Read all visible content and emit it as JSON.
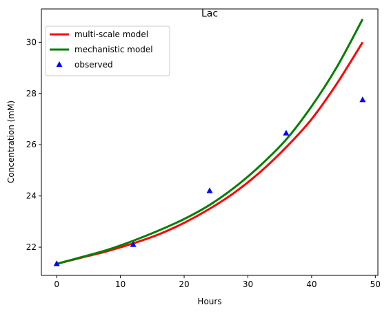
{
  "chart_data": {
    "type": "line",
    "title": "Lac",
    "xlabel": "Hours",
    "ylabel": "Concentration (mM)",
    "xlim": [
      -2.4,
      50.4
    ],
    "ylim": [
      20.9,
      31.3
    ],
    "x_ticks": [
      0,
      10,
      20,
      30,
      40,
      50
    ],
    "y_ticks": [
      22,
      24,
      26,
      28,
      30
    ],
    "grid": false,
    "legend_position": "upper-left",
    "series": [
      {
        "name": "multi-scale model",
        "kind": "line",
        "color": "#ff0000",
        "x": [
          0,
          4,
          8,
          12,
          16,
          20,
          24,
          28,
          32,
          36,
          40,
          44,
          48
        ],
        "y": [
          21.35,
          21.6,
          21.85,
          22.15,
          22.5,
          22.95,
          23.5,
          24.15,
          24.95,
          25.9,
          27.0,
          28.4,
          30.0
        ]
      },
      {
        "name": "mechanistic model",
        "kind": "line",
        "color": "#008000",
        "x": [
          0,
          4,
          8,
          12,
          16,
          20,
          24,
          28,
          32,
          36,
          40,
          44,
          48
        ],
        "y": [
          21.35,
          21.62,
          21.9,
          22.25,
          22.65,
          23.1,
          23.65,
          24.35,
          25.2,
          26.2,
          27.5,
          29.05,
          30.9
        ]
      },
      {
        "name": "observed",
        "kind": "marker",
        "marker": "triangle",
        "color": "#0000ff",
        "x": [
          0,
          12,
          24,
          36,
          48
        ],
        "y": [
          21.35,
          22.1,
          24.2,
          26.45,
          27.75
        ]
      }
    ]
  }
}
